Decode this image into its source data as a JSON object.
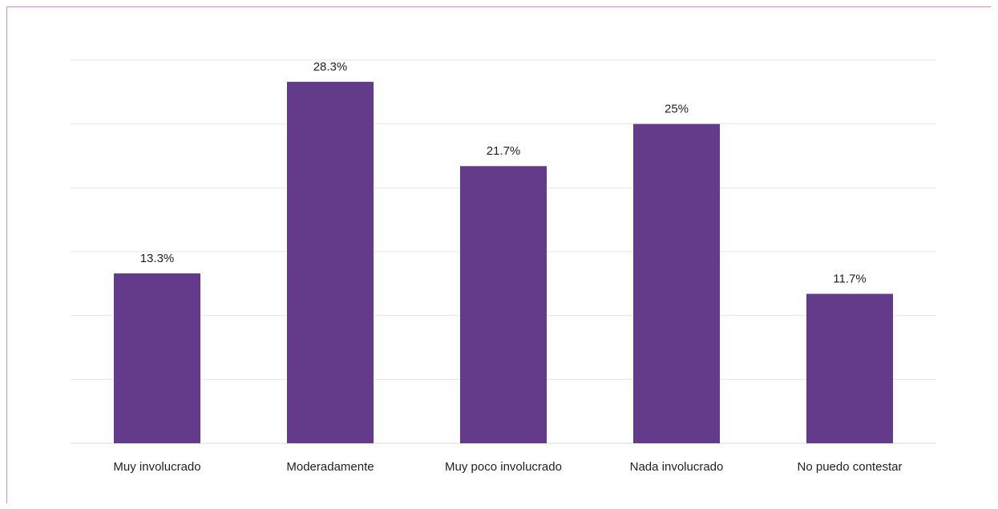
{
  "chart_data": {
    "type": "bar",
    "categories": [
      "Muy involucrado",
      "Moderadamente",
      "Muy poco involucrado",
      "Nada involucrado",
      "No puedo contestar"
    ],
    "values": [
      13.3,
      28.3,
      21.7,
      25,
      11.7
    ],
    "data_labels": [
      "13.3%",
      "28.3%",
      "21.7%",
      "25%",
      "11.7%"
    ],
    "title": "",
    "xlabel": "",
    "ylabel": "",
    "ylim": [
      0,
      30
    ],
    "gridlines": true,
    "legend": "none",
    "bar_color": "#643b8a",
    "frame_color": "#d78ac4"
  }
}
